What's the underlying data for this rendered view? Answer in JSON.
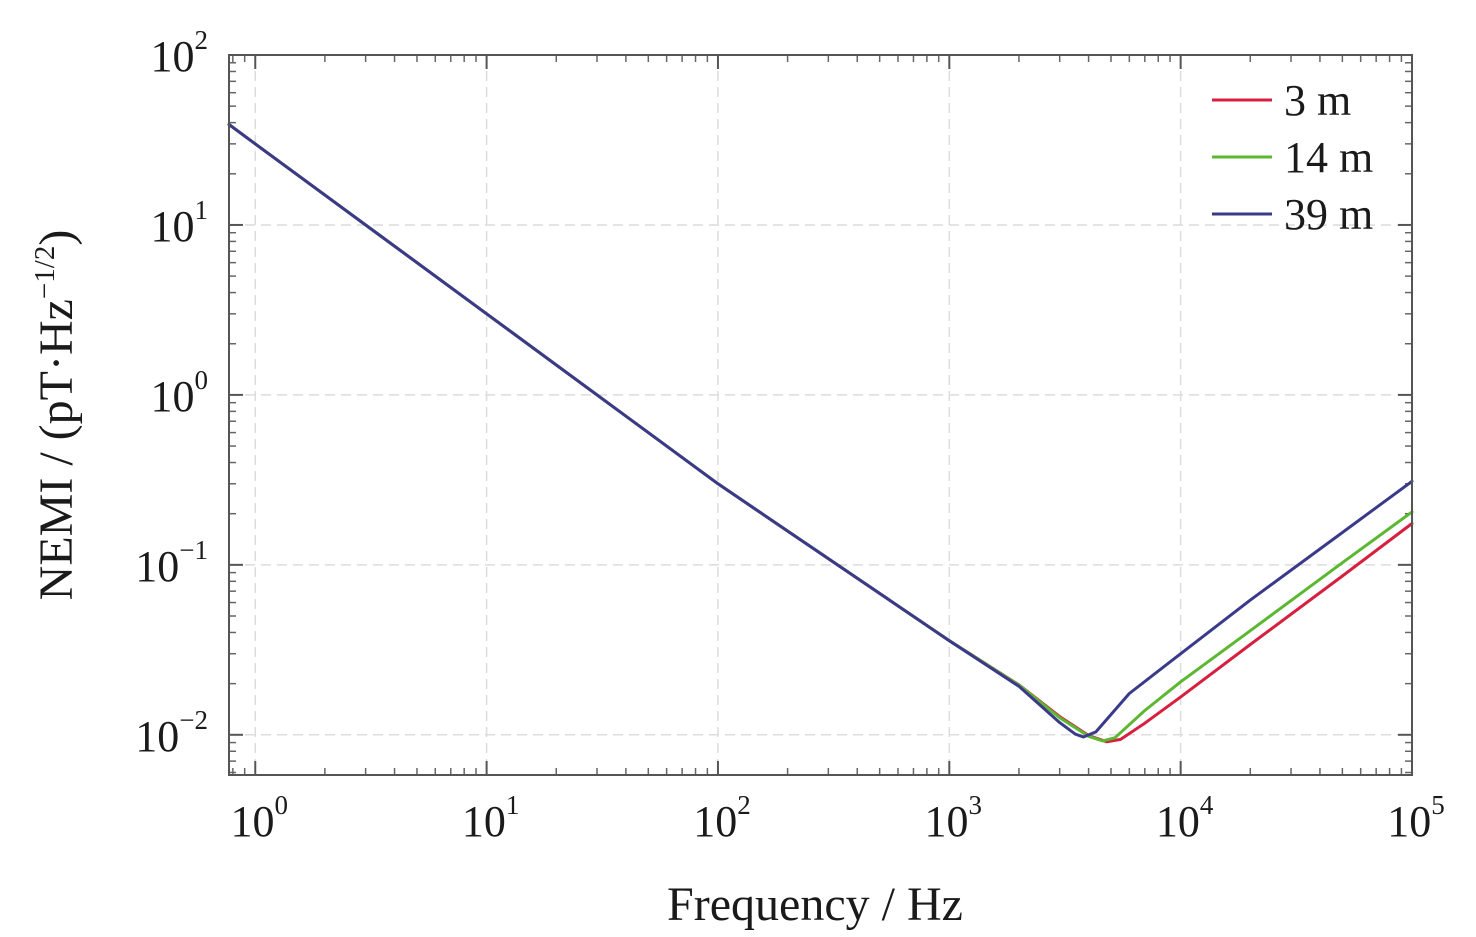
{
  "chart_data": {
    "type": "line",
    "title": "",
    "xlabel": "Frequency / Hz",
    "ylabel_prefix": "NEMI / (pT·Hz",
    "ylabel_sup": "−1/2",
    "ylabel_suffix": ")",
    "x_scale": "log",
    "y_scale": "log",
    "xlim": [
      0.77,
      100000
    ],
    "ylim": [
      0.0058,
      100
    ],
    "grid": true,
    "legend_position": "top-right",
    "x_ticks": [
      {
        "value": 1,
        "base": "10",
        "exp": "0"
      },
      {
        "value": 10,
        "base": "10",
        "exp": "1"
      },
      {
        "value": 100,
        "base": "10",
        "exp": "2"
      },
      {
        "value": 1000,
        "base": "10",
        "exp": "3"
      },
      {
        "value": 10000,
        "base": "10",
        "exp": "4"
      },
      {
        "value": 100000,
        "base": "10",
        "exp": "5"
      }
    ],
    "y_ticks": [
      {
        "value": 0.01,
        "base": "10",
        "exp": "−2"
      },
      {
        "value": 0.1,
        "base": "10",
        "exp": "−1"
      },
      {
        "value": 1,
        "base": "10",
        "exp": "0"
      },
      {
        "value": 10,
        "base": "10",
        "exp": "1"
      },
      {
        "value": 100,
        "base": "10",
        "exp": "2"
      }
    ],
    "series": [
      {
        "name": "3 m",
        "color": "#d6203f",
        "x": [
          0.77,
          1,
          10,
          100,
          1000,
          2000,
          3000,
          4000,
          4800,
          5500,
          7000,
          10000,
          20000,
          50000,
          100000
        ],
        "y": [
          39,
          30,
          3.0,
          0.3,
          0.0358,
          0.0197,
          0.0128,
          0.0099,
          0.0091,
          0.0094,
          0.0117,
          0.0167,
          0.034,
          0.086,
          0.175
        ]
      },
      {
        "name": "14 m",
        "color": "#5cb832",
        "x": [
          0.77,
          1,
          10,
          100,
          1000,
          2000,
          3000,
          4000,
          4600,
          5200,
          7000,
          10000,
          20000,
          50000,
          100000
        ],
        "y": [
          39,
          30,
          3.0,
          0.3,
          0.0358,
          0.0196,
          0.0126,
          0.0098,
          0.0092,
          0.0096,
          0.0139,
          0.0205,
          0.041,
          0.103,
          0.205
        ]
      },
      {
        "name": "39 m",
        "color": "#3a3a8a",
        "x": [
          0.77,
          1,
          10,
          100,
          1000,
          2000,
          3000,
          3500,
          3800,
          4300,
          6000,
          10000,
          20000,
          50000,
          100000
        ],
        "y": [
          39,
          30,
          3.0,
          0.3,
          0.0358,
          0.0193,
          0.0118,
          0.0101,
          0.0097,
          0.0104,
          0.0175,
          0.03,
          0.062,
          0.155,
          0.31
        ]
      }
    ]
  }
}
